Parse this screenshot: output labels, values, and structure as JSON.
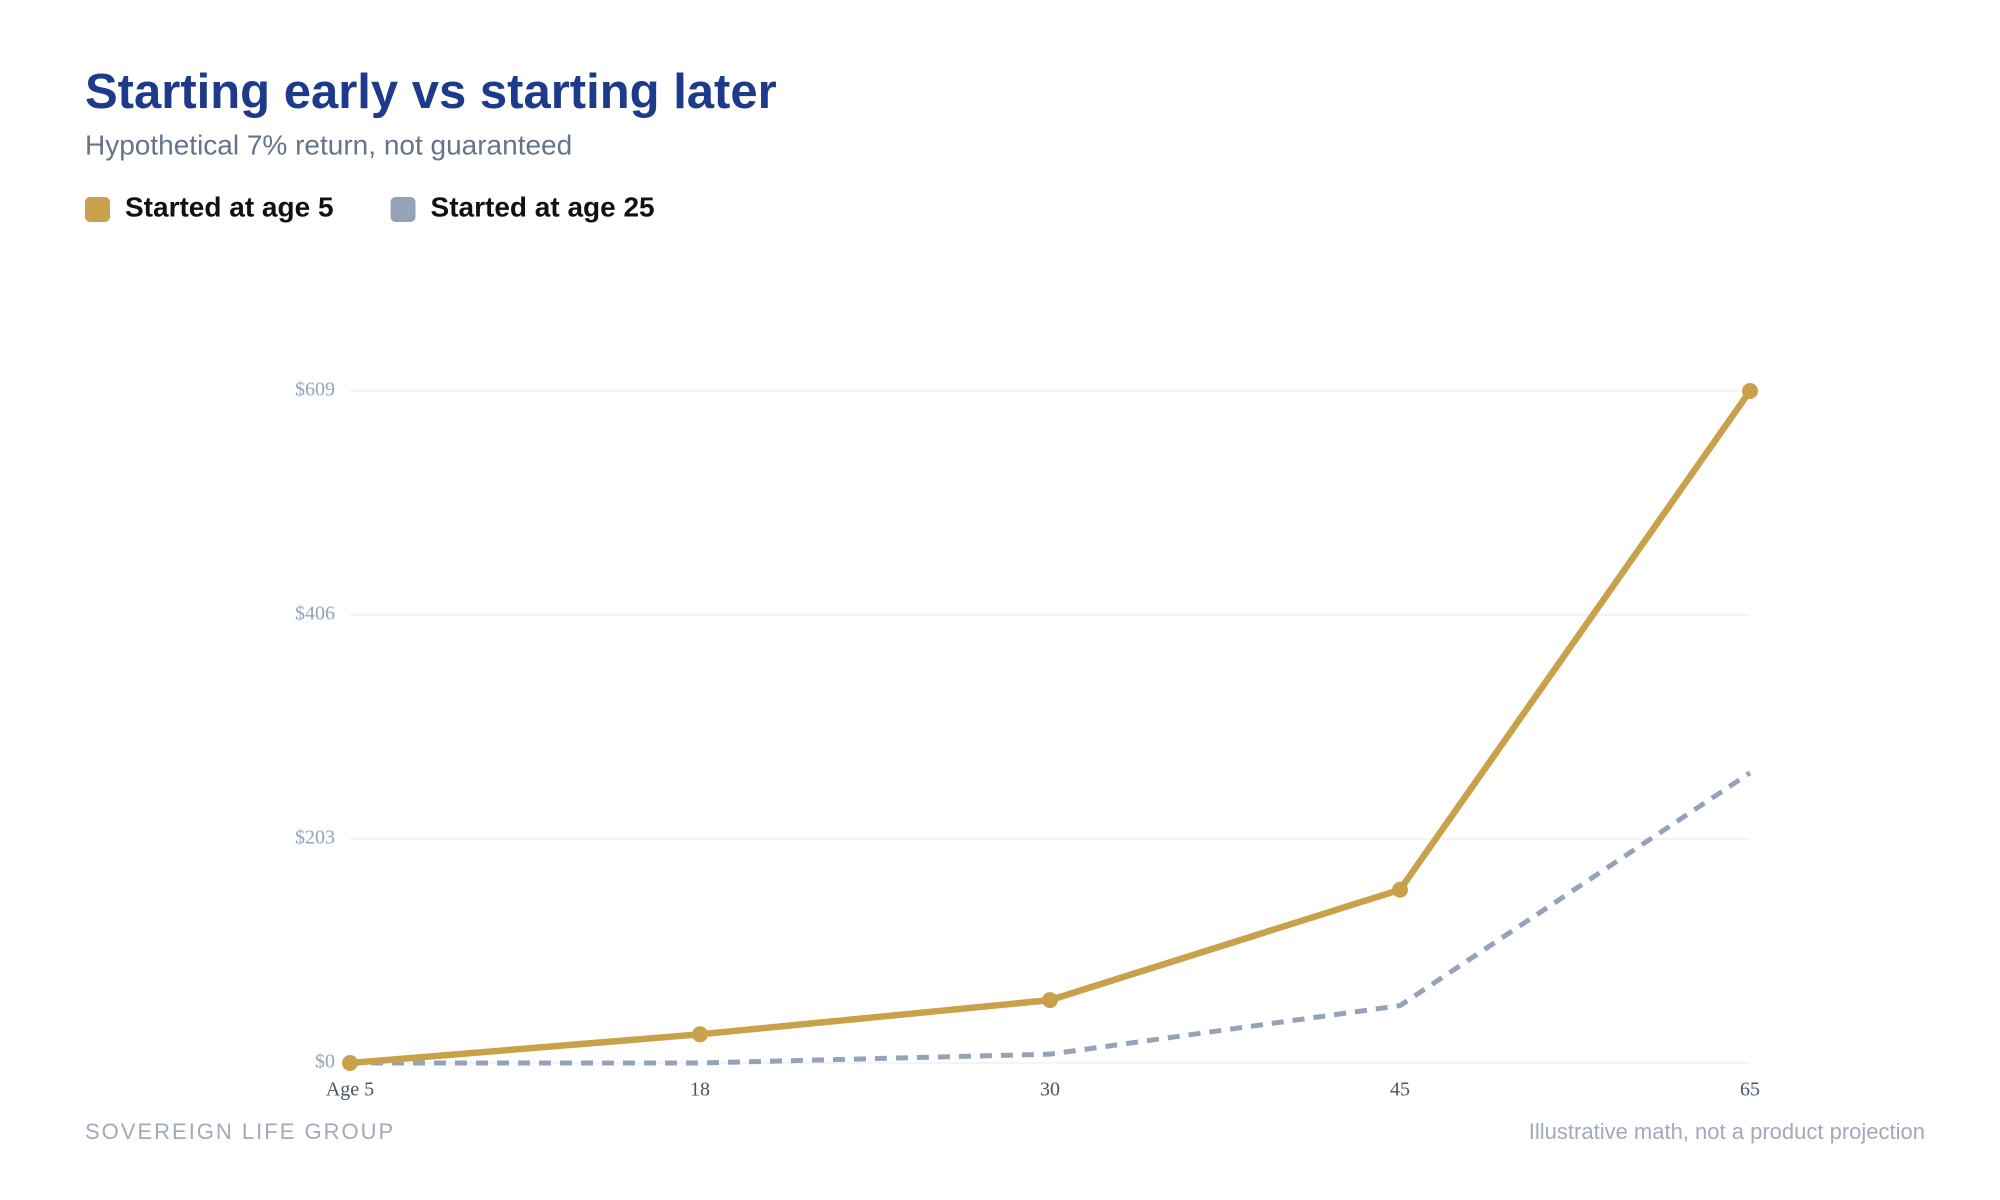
{
  "chart_data": {
    "type": "line",
    "title": "Starting early vs starting later",
    "subtitle": "Hypothetical 7% return, not guaranteed",
    "categories": [
      "Age 5",
      "18",
      "30",
      "45",
      "65"
    ],
    "series": [
      {
        "name": "Started at age 5",
        "color": "#c9a14a",
        "dash": false,
        "values": [
          0,
          26,
          57,
          157,
          609
        ]
      },
      {
        "name": "Started at age 25",
        "color": "#94a3b8",
        "dash": true,
        "values": [
          0,
          0,
          8,
          52,
          263
        ]
      }
    ],
    "ylim": [
      0,
      609
    ],
    "yticks": [
      {
        "value": 0,
        "label": "$0"
      },
      {
        "value": 203,
        "label": "$203"
      },
      {
        "value": 406,
        "label": "$406"
      },
      {
        "value": 609,
        "label": "$609"
      }
    ],
    "grid": true
  },
  "footer": {
    "brand": "SOVEREIGN LIFE GROUP",
    "note": "Illustrative math, not a product projection"
  }
}
